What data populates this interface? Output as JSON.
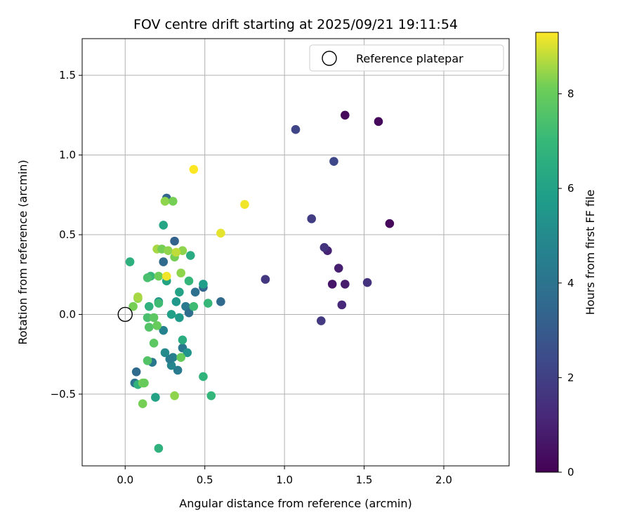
{
  "chart_data": {
    "type": "scatter",
    "title": "FOV centre drift starting at 2025/09/21 19:11:54",
    "xlabel": "Angular distance from reference (arcmin)",
    "ylabel": "Rotation from reference (arcmin)",
    "xlim": [
      -0.27,
      2.41
    ],
    "ylim": [
      -0.95,
      1.73
    ],
    "xticks": [
      0.0,
      0.5,
      1.0,
      1.5,
      2.0
    ],
    "yticks": [
      -0.5,
      0.0,
      0.5,
      1.0,
      1.5
    ],
    "xtick_labels": [
      "0.0",
      "0.5",
      "1.0",
      "1.5",
      "2.0"
    ],
    "ytick_labels": [
      "−0.5",
      "0.0",
      "0.5",
      "1.0",
      "1.5"
    ],
    "grid": true,
    "legend": {
      "label": "Reference platepar",
      "placement": "top-right"
    },
    "reference_point": {
      "x": 0.0,
      "y": 0.0
    },
    "colorbar": {
      "label": "Hours from first FF file",
      "range": [
        0,
        9.3
      ],
      "ticks": [
        0,
        2,
        4,
        6,
        8
      ],
      "tick_labels": [
        "0",
        "2",
        "4",
        "6",
        "8"
      ],
      "colormap": "viridis"
    },
    "points": [
      {
        "x": 1.38,
        "y": 1.25,
        "h": 0.2
      },
      {
        "x": 1.59,
        "y": 1.21,
        "h": 0.2
      },
      {
        "x": 1.66,
        "y": 0.57,
        "h": 0.2
      },
      {
        "x": 1.3,
        "y": 0.19,
        "h": 0.6
      },
      {
        "x": 1.38,
        "y": 0.19,
        "h": 0.8
      },
      {
        "x": 1.34,
        "y": 0.29,
        "h": 0.9
      },
      {
        "x": 1.27,
        "y": 0.4,
        "h": 1.0
      },
      {
        "x": 1.25,
        "y": 0.42,
        "h": 1.6
      },
      {
        "x": 1.52,
        "y": 0.2,
        "h": 1.5
      },
      {
        "x": 1.36,
        "y": 0.06,
        "h": 1.2
      },
      {
        "x": 1.23,
        "y": -0.04,
        "h": 1.8
      },
      {
        "x": 0.88,
        "y": 0.22,
        "h": 1.7
      },
      {
        "x": 1.17,
        "y": 0.6,
        "h": 1.9
      },
      {
        "x": 1.07,
        "y": 1.16,
        "h": 2.2
      },
      {
        "x": 1.31,
        "y": 0.96,
        "h": 2.3
      },
      {
        "x": 0.26,
        "y": 0.73,
        "h": 3.4
      },
      {
        "x": 0.31,
        "y": 0.46,
        "h": 3.3
      },
      {
        "x": 0.24,
        "y": 0.33,
        "h": 3.6
      },
      {
        "x": 0.49,
        "y": 0.17,
        "h": 3.4
      },
      {
        "x": 0.6,
        "y": 0.08,
        "h": 3.6
      },
      {
        "x": 0.44,
        "y": 0.14,
        "h": 3.9
      },
      {
        "x": 0.38,
        "y": 0.05,
        "h": 4.3
      },
      {
        "x": 0.4,
        "y": 0.01,
        "h": 3.8
      },
      {
        "x": 0.07,
        "y": -0.36,
        "h": 3.6
      },
      {
        "x": 0.06,
        "y": -0.43,
        "h": 4.0
      },
      {
        "x": 0.17,
        "y": -0.3,
        "h": 4.2
      },
      {
        "x": 0.24,
        "y": -0.1,
        "h": 4.6
      },
      {
        "x": 0.33,
        "y": -0.35,
        "h": 4.4
      },
      {
        "x": 0.3,
        "y": -0.27,
        "h": 4.6
      },
      {
        "x": 0.29,
        "y": -0.32,
        "h": 4.8
      },
      {
        "x": 0.28,
        "y": -0.28,
        "h": 4.4
      },
      {
        "x": 0.36,
        "y": -0.21,
        "h": 4.2
      },
      {
        "x": 0.25,
        "y": -0.24,
        "h": 5.0
      },
      {
        "x": 0.39,
        "y": -0.24,
        "h": 5.4
      },
      {
        "x": 0.32,
        "y": 0.08,
        "h": 5.6
      },
      {
        "x": 0.34,
        "y": -0.02,
        "h": 5.7
      },
      {
        "x": 0.21,
        "y": 0.08,
        "h": 5.4
      },
      {
        "x": 0.29,
        "y": 0.0,
        "h": 5.9
      },
      {
        "x": 0.34,
        "y": 0.14,
        "h": 6.0
      },
      {
        "x": 0.49,
        "y": 0.19,
        "h": 5.8
      },
      {
        "x": 0.19,
        "y": -0.52,
        "h": 6.0
      },
      {
        "x": 0.24,
        "y": 0.56,
        "h": 6.2
      },
      {
        "x": 0.26,
        "y": 0.21,
        "h": 6.1
      },
      {
        "x": 0.41,
        "y": 0.37,
        "h": 6.4
      },
      {
        "x": 0.36,
        "y": -0.16,
        "h": 6.5
      },
      {
        "x": 0.15,
        "y": 0.05,
        "h": 6.7
      },
      {
        "x": 0.03,
        "y": 0.33,
        "h": 6.6
      },
      {
        "x": 0.4,
        "y": 0.21,
        "h": 6.9
      },
      {
        "x": 0.43,
        "y": 0.05,
        "h": 7.2
      },
      {
        "x": 0.52,
        "y": 0.07,
        "h": 7.0
      },
      {
        "x": 0.49,
        "y": -0.39,
        "h": 6.8
      },
      {
        "x": 0.54,
        "y": -0.51,
        "h": 6.9
      },
      {
        "x": 0.21,
        "y": -0.84,
        "h": 6.7
      },
      {
        "x": 0.08,
        "y": -0.44,
        "h": 6.8
      },
      {
        "x": 0.16,
        "y": 0.24,
        "h": 7.0
      },
      {
        "x": 0.21,
        "y": 0.07,
        "h": 7.2
      },
      {
        "x": 0.14,
        "y": 0.23,
        "h": 7.4
      },
      {
        "x": 0.14,
        "y": -0.02,
        "h": 7.4
      },
      {
        "x": 0.15,
        "y": -0.08,
        "h": 7.6
      },
      {
        "x": 0.14,
        "y": -0.29,
        "h": 7.6
      },
      {
        "x": 0.18,
        "y": -0.02,
        "h": 7.8
      },
      {
        "x": 0.18,
        "y": -0.18,
        "h": 7.8
      },
      {
        "x": 0.2,
        "y": -0.07,
        "h": 8.0
      },
      {
        "x": 0.35,
        "y": -0.27,
        "h": 8.0
      },
      {
        "x": 0.11,
        "y": -0.43,
        "h": 8.2
      },
      {
        "x": 0.12,
        "y": -0.43,
        "h": 8.0
      },
      {
        "x": 0.11,
        "y": -0.56,
        "h": 8.2
      },
      {
        "x": 0.31,
        "y": -0.51,
        "h": 8.4
      },
      {
        "x": 0.05,
        "y": 0.05,
        "h": 8.2
      },
      {
        "x": 0.08,
        "y": 0.1,
        "h": 8.4
      },
      {
        "x": 0.08,
        "y": 0.11,
        "h": 8.6
      },
      {
        "x": 0.21,
        "y": 0.24,
        "h": 8.1
      },
      {
        "x": 0.2,
        "y": 0.41,
        "h": 8.6
      },
      {
        "x": 0.23,
        "y": 0.41,
        "h": 8.2
      },
      {
        "x": 0.27,
        "y": 0.4,
        "h": 8.4
      },
      {
        "x": 0.31,
        "y": 0.36,
        "h": 8.2
      },
      {
        "x": 0.36,
        "y": 0.4,
        "h": 8.4
      },
      {
        "x": 0.35,
        "y": 0.26,
        "h": 8.4
      },
      {
        "x": 0.25,
        "y": 0.71,
        "h": 8.4
      },
      {
        "x": 0.3,
        "y": 0.71,
        "h": 8.2
      },
      {
        "x": 0.32,
        "y": 0.39,
        "h": 8.8
      },
      {
        "x": 0.26,
        "y": 0.24,
        "h": 9.2
      },
      {
        "x": 0.6,
        "y": 0.51,
        "h": 9.1
      },
      {
        "x": 0.75,
        "y": 0.69,
        "h": 9.2
      },
      {
        "x": 0.43,
        "y": 0.91,
        "h": 9.3
      }
    ]
  }
}
